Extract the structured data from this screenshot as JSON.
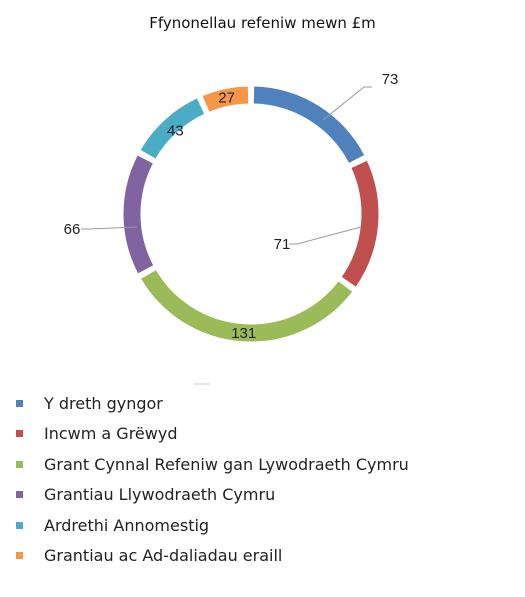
{
  "chart_data": {
    "type": "pie",
    "variant": "donut",
    "title": "Ffynonellau refeniw mewn £m",
    "legend_position": "bottom-left",
    "categories": [
      "Y dreth gyngor",
      "Incwm a Grëwyd",
      "Grant Cynnal Refeniw gan Lywodraeth Cymru",
      "Grantiau Llywodraeth Cymru",
      "Ardrethi Annomestig",
      "Grantiau ac Ad-daliadau eraill"
    ],
    "values": [
      73,
      71,
      131,
      66,
      43,
      27
    ],
    "colors": [
      "#4F81BD",
      "#C0504D",
      "#9BBB59",
      "#8064A2",
      "#4BACC6",
      "#F79646"
    ]
  }
}
